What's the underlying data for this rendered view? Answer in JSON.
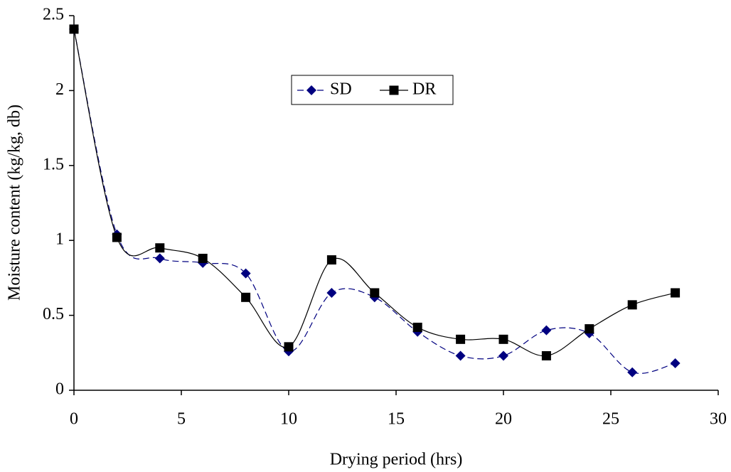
{
  "chart_data": {
    "type": "line",
    "x_label": "Drying period (hrs)",
    "y_label": "Moisture content (kg/kg, db)",
    "x": [
      0,
      2,
      4,
      6,
      8,
      10,
      12,
      14,
      16,
      18,
      20,
      22,
      24,
      26,
      28
    ],
    "series": [
      {
        "name": "SD",
        "color": "#000080",
        "marker": "diamond",
        "dash": true,
        "values": [
          2.41,
          1.04,
          0.88,
          0.85,
          0.78,
          0.26,
          0.65,
          0.62,
          0.39,
          0.23,
          0.23,
          0.4,
          0.38,
          0.12,
          0.18
        ]
      },
      {
        "name": "DR",
        "color": "#000000",
        "marker": "square",
        "dash": false,
        "values": [
          2.41,
          1.02,
          0.95,
          0.88,
          0.62,
          0.29,
          0.87,
          0.65,
          0.42,
          0.34,
          0.34,
          0.23,
          0.41,
          0.57,
          0.65
        ]
      }
    ],
    "xlim": [
      0,
      30
    ],
    "xticks": [
      0,
      5,
      10,
      15,
      20,
      25,
      30
    ],
    "ylim": [
      0,
      2.5
    ],
    "yticks": [
      0,
      0.5,
      1,
      1.5,
      2,
      2.5
    ],
    "grid": false,
    "smooth": true
  }
}
